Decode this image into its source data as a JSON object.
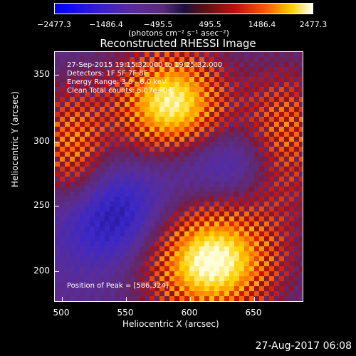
{
  "colorbar": {
    "ticks": [
      "−2477.3",
      "−1486.4",
      "−495.5",
      "495.5",
      "1486.4",
      "2477.3"
    ],
    "units": "(photons cm⁻² s⁻¹ asec⁻²)"
  },
  "title": "Reconstructed RHESSI Image",
  "info": {
    "time": "27-Sep-2015 19:15:32.000 to 19:25:32.000",
    "detectors": "Detectors: 1F 5F 7F 8F",
    "energy": "Energy Range: 3.0 - 6.0 keV",
    "clean": "Clean    Total counts: 6.07e+04",
    "peak": "Position of Peak = [586,324]"
  },
  "axes": {
    "xlabel": "Heliocentric X (arcsec)",
    "ylabel": "Heliocentric Y (arcsec)",
    "xticks": [
      "500",
      "550",
      "600",
      "650"
    ],
    "yticks": [
      "350",
      "300",
      "250",
      "200"
    ]
  },
  "footer": {
    "date": "27-Aug-2017 06:08"
  },
  "colors": {
    "background": "#000000",
    "foreground": "#ffffff"
  }
}
